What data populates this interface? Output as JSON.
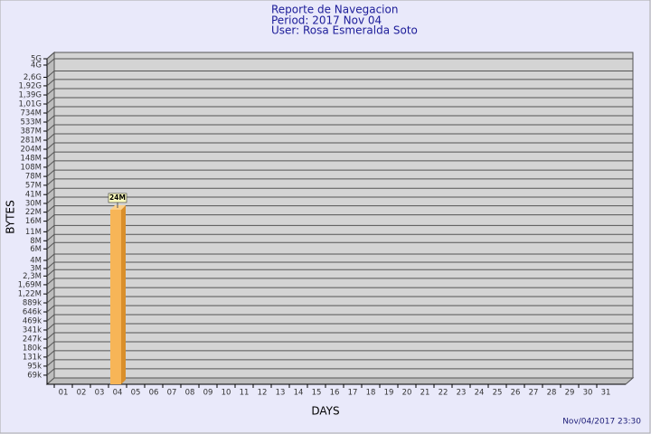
{
  "chart_data": {
    "type": "bar",
    "title": "Reporte de Navegacion",
    "subtitle": [
      "Period: 2017 Nov 04",
      "User: Rosa Esmeralda Soto"
    ],
    "x_label": "DAYS",
    "y_label": "BYTES",
    "timestamp": "Nov/04/2017 23:30",
    "log_scale": true,
    "grid": true,
    "color": "#f7b557",
    "categories": [
      "01",
      "02",
      "03",
      "04",
      "05",
      "06",
      "07",
      "08",
      "09",
      "10",
      "11",
      "12",
      "13",
      "14",
      "15",
      "16",
      "17",
      "18",
      "19",
      "20",
      "21",
      "22",
      "23",
      "24",
      "25",
      "26",
      "27",
      "28",
      "29",
      "30",
      "31"
    ],
    "values": [
      null,
      null,
      null,
      24000000,
      null,
      null,
      null,
      null,
      null,
      null,
      null,
      null,
      null,
      null,
      null,
      null,
      null,
      null,
      null,
      null,
      null,
      null,
      null,
      null,
      null,
      null,
      null,
      null,
      null,
      null,
      null
    ],
    "value_labels": [
      null,
      null,
      null,
      "24M",
      null,
      null,
      null,
      null,
      null,
      null,
      null,
      null,
      null,
      null,
      null,
      null,
      null,
      null,
      null,
      null,
      null,
      null,
      null,
      null,
      null,
      null,
      null,
      null,
      null,
      null,
      null
    ],
    "ylim": [
      50000,
      5000000000
    ],
    "yticks": [
      {
        "value": 5000000000,
        "label": "5G"
      },
      {
        "value": 4000000000,
        "label": "4G"
      },
      {
        "value": 2600000000,
        "label": "2,6G"
      },
      {
        "value": 1920000000,
        "label": "1,92G"
      },
      {
        "value": 1390000000,
        "label": "1,39G"
      },
      {
        "value": 1010000000,
        "label": "1,01G"
      },
      {
        "value": 734000000,
        "label": "734M"
      },
      {
        "value": 533000000,
        "label": "533M"
      },
      {
        "value": 387000000,
        "label": "387M"
      },
      {
        "value": 281000000,
        "label": "281M"
      },
      {
        "value": 204000000,
        "label": "204M"
      },
      {
        "value": 148000000,
        "label": "148M"
      },
      {
        "value": 108000000,
        "label": "108M"
      },
      {
        "value": 78000000,
        "label": "78M"
      },
      {
        "value": 57000000,
        "label": "57M"
      },
      {
        "value": 41000000,
        "label": "41M"
      },
      {
        "value": 30000000,
        "label": "30M"
      },
      {
        "value": 22000000,
        "label": "22M"
      },
      {
        "value": 16000000,
        "label": "16M"
      },
      {
        "value": 11000000,
        "label": "11M"
      },
      {
        "value": 8000000,
        "label": "8M"
      },
      {
        "value": 6000000,
        "label": "6M"
      },
      {
        "value": 4000000,
        "label": "4M"
      },
      {
        "value": 3000000,
        "label": "3M"
      },
      {
        "value": 2300000,
        "label": "2,3M"
      },
      {
        "value": 1690000,
        "label": "1,69M"
      },
      {
        "value": 1220000,
        "label": "1,22M"
      },
      {
        "value": 889000,
        "label": "889k"
      },
      {
        "value": 646000,
        "label": "646k"
      },
      {
        "value": 469000,
        "label": "469k"
      },
      {
        "value": 341000,
        "label": "341k"
      },
      {
        "value": 247000,
        "label": "247k"
      },
      {
        "value": 180000,
        "label": "180k"
      },
      {
        "value": 131000,
        "label": "131k"
      },
      {
        "value": 95000,
        "label": "95k"
      },
      {
        "value": 69000,
        "label": "69k"
      }
    ]
  }
}
